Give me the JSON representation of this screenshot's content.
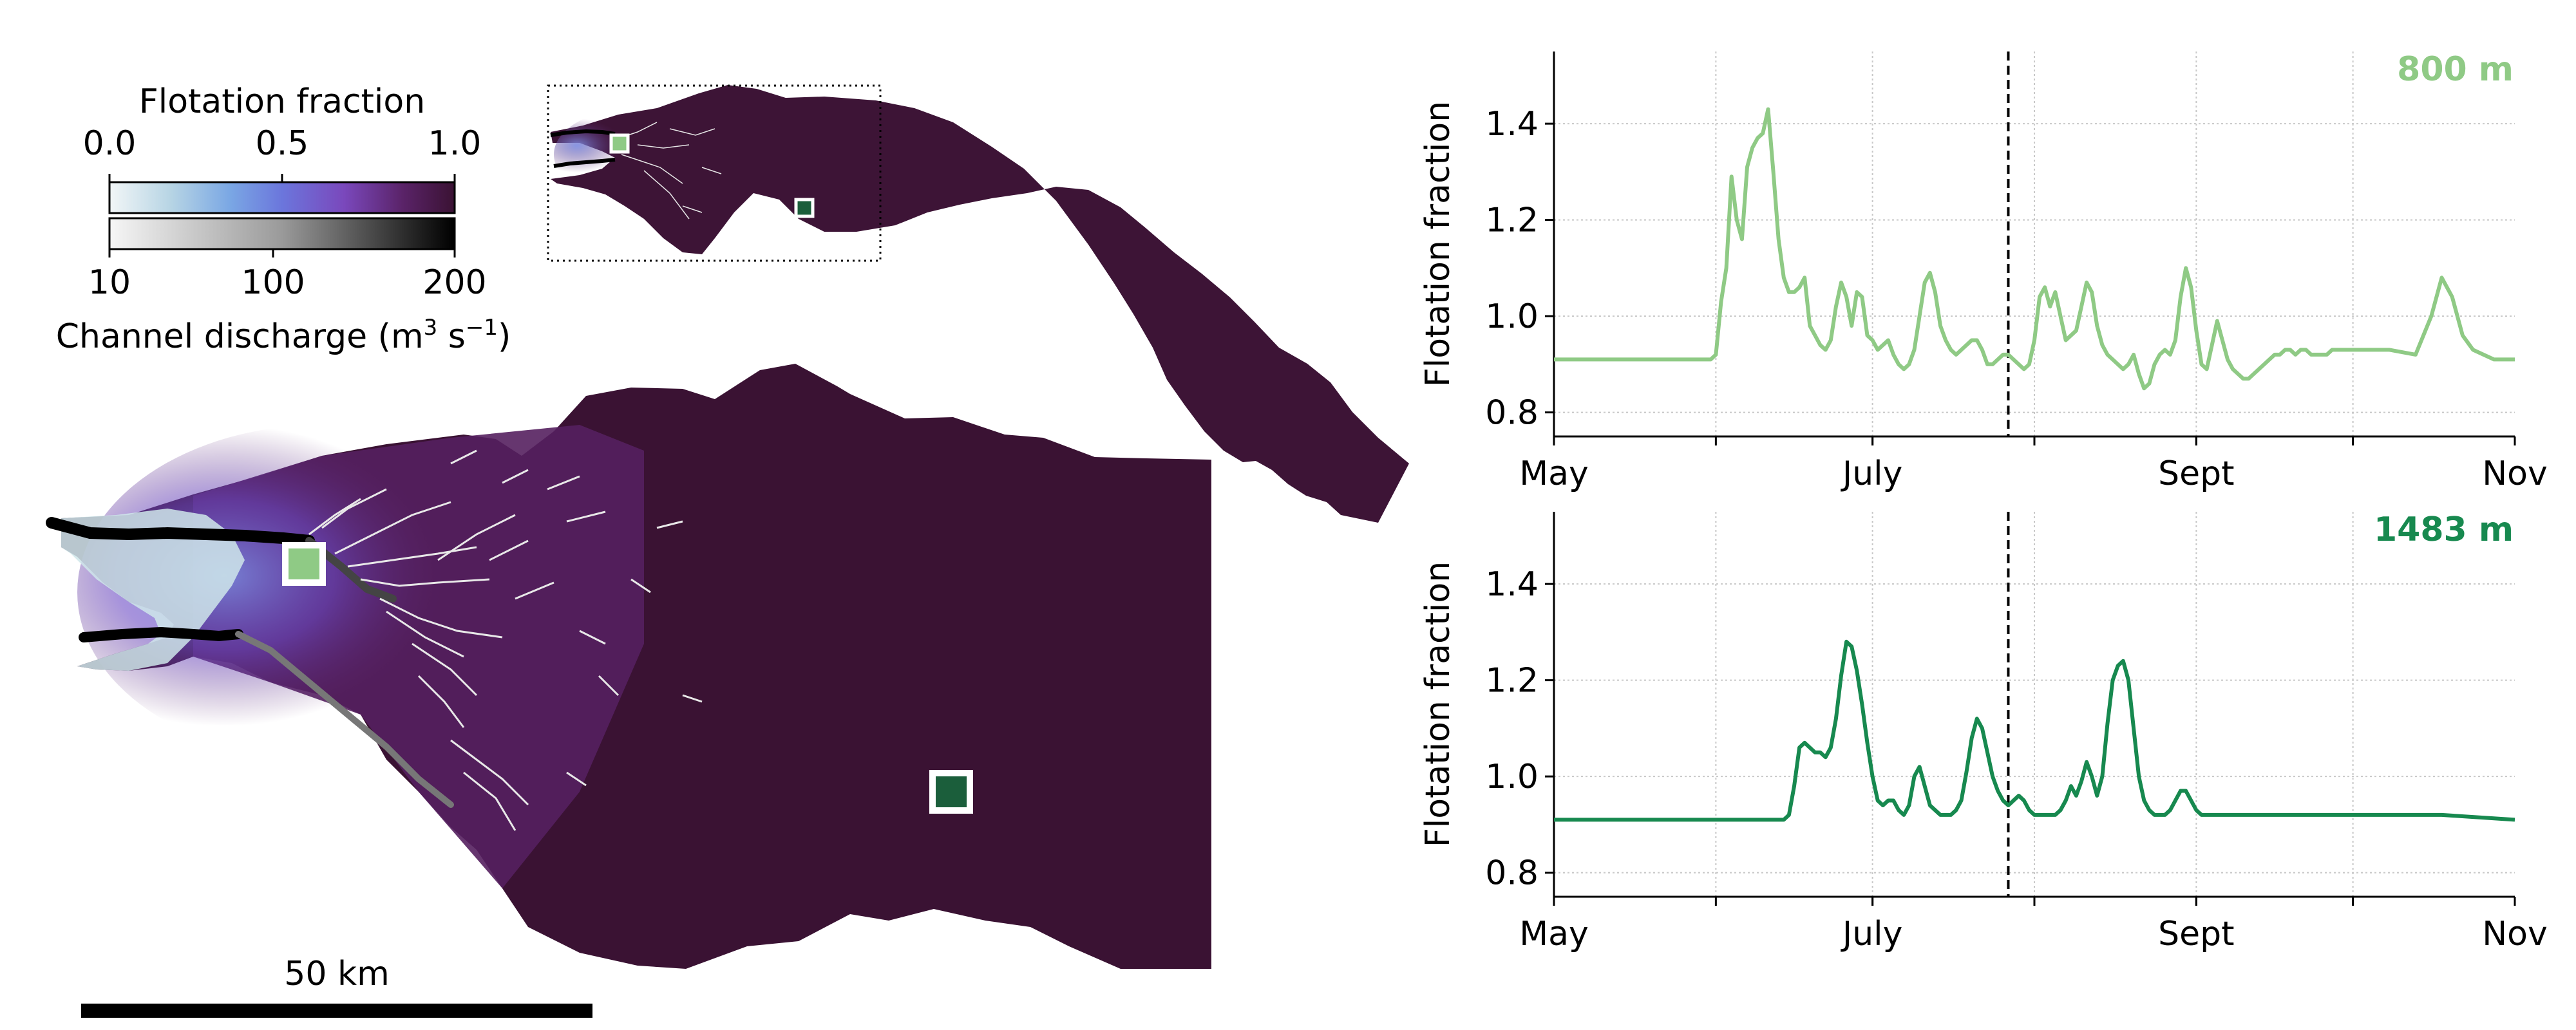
{
  "colorbar": {
    "top_title": "Flotation fraction",
    "top_ticks": [
      "0.0",
      "0.5",
      "1.0"
    ],
    "bottom_ticks": [
      "10",
      "100",
      "200"
    ],
    "bottom_title_main": "Channel discharge (m",
    "bottom_title_sup1": "3",
    "bottom_title_mid": " s",
    "bottom_title_sup2": "−1",
    "bottom_title_end": ")"
  },
  "scale_bar": {
    "label": "50 km"
  },
  "colors": {
    "site_800": "#8fca85",
    "site_1483": "#17894f",
    "ice": "#3a1233",
    "ice_mid": "#5a2368",
    "ice_low": "#7b59c8",
    "site_marker_dark": "#1b5e3b"
  },
  "chart_data": [
    {
      "type": "line",
      "site_label": "800 m",
      "ylabel": "Flotation fraction",
      "x_ticks": [
        "May",
        "July",
        "Sept",
        "Nov"
      ],
      "x_tick_days": [
        0,
        61,
        123,
        184
      ],
      "ylim": [
        0.75,
        1.55
      ],
      "y_ticks": [
        0.8,
        1.0,
        1.2,
        1.4
      ],
      "vline_day": 87,
      "grid": true,
      "series": [
        {
          "x": [
            0,
            10,
            20,
            30,
            31,
            32,
            33,
            34,
            35,
            36,
            37,
            38,
            39,
            40,
            41,
            42,
            43,
            44,
            45,
            46,
            47,
            48,
            49,
            50,
            51,
            52,
            53,
            54,
            55,
            56,
            57,
            58,
            59,
            60,
            61,
            62,
            63,
            64,
            65,
            66,
            67,
            68,
            69,
            70,
            71,
            72,
            73,
            74,
            75,
            76,
            77,
            78,
            79,
            80,
            81,
            82,
            83,
            84,
            85,
            86,
            87,
            88,
            89,
            90,
            91,
            92,
            93,
            94,
            95,
            96,
            97,
            98,
            99,
            100,
            101,
            102,
            103,
            104,
            105,
            106,
            107,
            108,
            109,
            110,
            111,
            112,
            113,
            114,
            115,
            116,
            117,
            118,
            119,
            120,
            121,
            122,
            123,
            124,
            125,
            126,
            127,
            128,
            129,
            130,
            131,
            132,
            133,
            134,
            135,
            136,
            137,
            138,
            139,
            140,
            141,
            142,
            143,
            144,
            145,
            146,
            147,
            148,
            149,
            150,
            155,
            160,
            165,
            168,
            170,
            172,
            174,
            176,
            178,
            180,
            184
          ],
          "y": [
            0.91,
            0.91,
            0.91,
            0.91,
            0.92,
            1.03,
            1.1,
            1.29,
            1.2,
            1.16,
            1.31,
            1.35,
            1.37,
            1.38,
            1.43,
            1.3,
            1.16,
            1.08,
            1.05,
            1.05,
            1.06,
            1.08,
            0.98,
            0.96,
            0.94,
            0.93,
            0.95,
            1.02,
            1.07,
            1.04,
            0.98,
            1.05,
            1.04,
            0.96,
            0.95,
            0.93,
            0.94,
            0.95,
            0.92,
            0.9,
            0.89,
            0.9,
            0.93,
            1.0,
            1.07,
            1.09,
            1.05,
            0.98,
            0.95,
            0.93,
            0.92,
            0.93,
            0.94,
            0.95,
            0.95,
            0.93,
            0.9,
            0.9,
            0.91,
            0.92,
            0.92,
            0.91,
            0.9,
            0.89,
            0.9,
            0.95,
            1.04,
            1.06,
            1.02,
            1.05,
            1.0,
            0.95,
            0.96,
            0.97,
            1.02,
            1.07,
            1.05,
            0.98,
            0.94,
            0.92,
            0.91,
            0.9,
            0.89,
            0.9,
            0.92,
            0.88,
            0.85,
            0.86,
            0.9,
            0.92,
            0.93,
            0.92,
            0.95,
            1.04,
            1.1,
            1.06,
            0.97,
            0.9,
            0.89,
            0.94,
            0.99,
            0.95,
            0.91,
            0.89,
            0.88,
            0.87,
            0.87,
            0.88,
            0.89,
            0.9,
            0.91,
            0.92,
            0.92,
            0.93,
            0.93,
            0.92,
            0.93,
            0.93,
            0.92,
            0.92,
            0.92,
            0.92,
            0.93,
            0.93,
            0.93,
            0.93,
            0.92,
            1.0,
            1.08,
            1.04,
            0.96,
            0.93,
            0.92,
            0.91,
            0.91
          ]
        }
      ]
    },
    {
      "type": "line",
      "site_label": "1483 m",
      "ylabel": "Flotation fraction",
      "x_ticks": [
        "May",
        "July",
        "Sept",
        "Nov"
      ],
      "x_tick_days": [
        0,
        61,
        123,
        184
      ],
      "ylim": [
        0.75,
        1.55
      ],
      "y_ticks": [
        0.8,
        1.0,
        1.2,
        1.4
      ],
      "vline_day": 87,
      "grid": true,
      "series": [
        {
          "x": [
            0,
            10,
            20,
            30,
            40,
            44,
            45,
            46,
            47,
            48,
            49,
            50,
            51,
            52,
            53,
            54,
            55,
            56,
            57,
            58,
            59,
            60,
            61,
            62,
            63,
            64,
            65,
            66,
            67,
            68,
            69,
            70,
            71,
            72,
            73,
            74,
            75,
            76,
            77,
            78,
            79,
            80,
            81,
            82,
            83,
            84,
            85,
            86,
            87,
            88,
            89,
            90,
            91,
            92,
            93,
            94,
            95,
            96,
            97,
            98,
            99,
            100,
            101,
            102,
            103,
            104,
            105,
            106,
            107,
            108,
            109,
            110,
            111,
            112,
            113,
            114,
            115,
            116,
            117,
            118,
            119,
            120,
            121,
            122,
            123,
            124,
            125,
            126,
            127,
            128,
            130,
            135,
            140,
            150,
            160,
            170,
            184
          ],
          "y": [
            0.91,
            0.91,
            0.91,
            0.91,
            0.91,
            0.91,
            0.92,
            0.98,
            1.06,
            1.07,
            1.06,
            1.05,
            1.05,
            1.04,
            1.06,
            1.12,
            1.21,
            1.28,
            1.27,
            1.22,
            1.15,
            1.07,
            1.0,
            0.95,
            0.94,
            0.95,
            0.95,
            0.93,
            0.92,
            0.94,
            1.0,
            1.02,
            0.98,
            0.94,
            0.93,
            0.92,
            0.92,
            0.92,
            0.93,
            0.95,
            1.01,
            1.08,
            1.12,
            1.1,
            1.05,
            1.0,
            0.97,
            0.95,
            0.94,
            0.95,
            0.96,
            0.95,
            0.93,
            0.92,
            0.92,
            0.92,
            0.92,
            0.92,
            0.93,
            0.95,
            0.98,
            0.96,
            0.99,
            1.03,
            1.0,
            0.96,
            1.0,
            1.11,
            1.2,
            1.23,
            1.24,
            1.2,
            1.1,
            1.0,
            0.95,
            0.93,
            0.92,
            0.92,
            0.92,
            0.93,
            0.95,
            0.97,
            0.97,
            0.95,
            0.93,
            0.92,
            0.92,
            0.92,
            0.92,
            0.92,
            0.92,
            0.92,
            0.92,
            0.92,
            0.92,
            0.92,
            0.91
          ]
        }
      ]
    }
  ]
}
